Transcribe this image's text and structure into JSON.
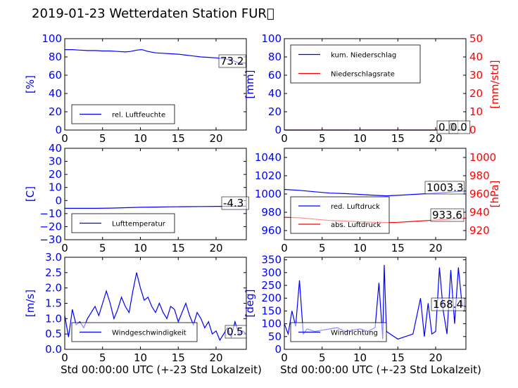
{
  "title": "2019-01-23 Wetterdaten Station FUR\u0000",
  "chart_data": [
    {
      "id": "humidity",
      "type": "line",
      "title": "",
      "xlabel": "",
      "ylabel": "[%]",
      "xlim": [
        0,
        24
      ],
      "ylim": [
        0,
        100
      ],
      "xticks": [
        0,
        5,
        10,
        15,
        20
      ],
      "yticks": [
        0,
        20,
        40,
        60,
        80,
        100
      ],
      "grid": false,
      "legend": {
        "position": "lower-left"
      },
      "value_label": "73.2",
      "series": [
        {
          "name": "rel. Luftfeuchte",
          "color": "#0000ff",
          "axis": "left",
          "x": [
            0,
            1,
            2,
            3,
            4,
            5,
            6,
            7,
            8,
            8.7,
            9.5,
            10.2,
            11,
            12,
            13,
            14,
            15,
            16,
            17,
            18,
            19,
            20,
            21,
            22,
            22.5,
            23,
            24
          ],
          "y": [
            88,
            88,
            87.5,
            87,
            87,
            86.5,
            86.5,
            86,
            85.5,
            86,
            87.5,
            88,
            86,
            84.5,
            84,
            83.5,
            83,
            82,
            81,
            80,
            79.5,
            79,
            78,
            77,
            75,
            73.5,
            73.2
          ]
        }
      ]
    },
    {
      "id": "precipitation",
      "type": "line",
      "title": "",
      "xlabel": "",
      "ylabel": "[mm]",
      "ylabel_right": "[mm/std]",
      "xlim": [
        0,
        24
      ],
      "ylim": [
        0,
        100
      ],
      "ylim_right": [
        0,
        50
      ],
      "xticks": [
        0,
        5,
        10,
        15,
        20
      ],
      "yticks": [
        0,
        20,
        40,
        60,
        80,
        100
      ],
      "yticks_right": [
        0,
        10,
        20,
        30,
        40,
        50
      ],
      "grid": false,
      "legend": {
        "position": "upper-left"
      },
      "value_label": "0.0",
      "value_label_right": "0.0",
      "series": [
        {
          "name": "kum. Niederschlag",
          "color": "#0000ff",
          "axis": "left",
          "x": [
            0,
            24
          ],
          "y": [
            0,
            0
          ]
        },
        {
          "name": "Niederschlagsrate",
          "color": "#ff0000",
          "axis": "right",
          "x": [
            0,
            24
          ],
          "y": [
            0,
            0
          ]
        }
      ]
    },
    {
      "id": "temperature",
      "type": "line",
      "title": "",
      "xlabel": "",
      "ylabel": "[C]",
      "xlim": [
        0,
        24
      ],
      "ylim": [
        -30,
        40
      ],
      "xticks": [
        0,
        5,
        10,
        15,
        20
      ],
      "yticks": [
        -30,
        -20,
        -10,
        0,
        10,
        20,
        30,
        40
      ],
      "grid": false,
      "legend": {
        "position": "lower-left"
      },
      "value_label": "-4.3",
      "series": [
        {
          "name": "Lufttemperatur",
          "color": "#0000ff",
          "axis": "left",
          "x": [
            0,
            2,
            4,
            6,
            8,
            10,
            12,
            14,
            16,
            18,
            20,
            22,
            24
          ],
          "y": [
            -6,
            -6,
            -6,
            -5.8,
            -5.5,
            -5.2,
            -5,
            -4.8,
            -4.7,
            -4.6,
            -4.5,
            -4.4,
            -4.3
          ]
        }
      ]
    },
    {
      "id": "pressure",
      "type": "line",
      "title": "",
      "xlabel": "",
      "ylabel": "",
      "ylabel_right": "[hPa]",
      "xlim": [
        0,
        24
      ],
      "ylim": [
        950,
        1050
      ],
      "ylim_right": [
        910,
        1010
      ],
      "xticks": [
        0,
        5,
        10,
        15,
        20
      ],
      "yticks": [
        960,
        980,
        1000,
        1020,
        1040
      ],
      "yticks_right": [
        920,
        940,
        960,
        980,
        1000
      ],
      "grid": false,
      "legend": {
        "position": "lower-left"
      },
      "value_label": "1003.3",
      "value_label_right": "933.6",
      "series": [
        {
          "name": "red. Luftdruck",
          "color": "#0000ff",
          "axis": "left",
          "x": [
            0,
            2,
            4,
            6,
            8,
            10,
            12,
            13.5,
            15,
            17,
            19,
            21,
            23,
            24
          ],
          "y": [
            1005,
            1004,
            1002.5,
            1001,
            1000.5,
            999.5,
            998.5,
            998,
            998.5,
            999.5,
            1000.5,
            1001.5,
            1002.8,
            1003.3
          ]
        },
        {
          "name": "abs. Luftdruck",
          "color": "#ff0000",
          "axis": "right",
          "x": [
            0,
            2,
            4,
            6,
            8,
            10,
            12,
            13.5,
            15,
            17,
            19,
            21,
            23,
            24
          ],
          "y": [
            934.5,
            934,
            932.5,
            931,
            930.5,
            929.5,
            929,
            928.8,
            929,
            930,
            931,
            932,
            933,
            933.6
          ]
        }
      ]
    },
    {
      "id": "wind-speed",
      "type": "line",
      "title": "",
      "xlabel": "Std 00:00:00 UTC (+-23 Std Lokalzeit)",
      "ylabel": "[m/s]",
      "xlim": [
        0,
        24
      ],
      "ylim": [
        0,
        3
      ],
      "xticks": [
        0,
        5,
        10,
        15,
        20
      ],
      "yticks": [
        0.0,
        0.5,
        1.0,
        1.5,
        2.0,
        2.5,
        3.0
      ],
      "ytick_labels": [
        "0.0",
        "0.5",
        "1.0",
        "1.5",
        "2.0",
        "2.5",
        "3.0"
      ],
      "grid": false,
      "legend": {
        "position": "lower-center"
      },
      "value_label": "0.5",
      "series": [
        {
          "name": "Windgeschwindigkeit",
          "color": "#0000ff",
          "axis": "left",
          "x": [
            0,
            0.5,
            1,
            1.5,
            2,
            2.5,
            3,
            3.5,
            4,
            4.5,
            5,
            5.5,
            6,
            6.5,
            7,
            7.5,
            8,
            8.5,
            9,
            9.5,
            10,
            10.5,
            11,
            11.5,
            12,
            12.5,
            13,
            13.5,
            14,
            14.5,
            15,
            15.5,
            16,
            16.5,
            17,
            17.5,
            18,
            18.5,
            19,
            19.5,
            20,
            20.5,
            21,
            21.5,
            22,
            22.5,
            23,
            23.5,
            24
          ],
          "y": [
            1.1,
            0.4,
            1.3,
            0.8,
            0.9,
            0.7,
            1.0,
            1.2,
            1.4,
            1.1,
            1.5,
            1.9,
            1.5,
            1.0,
            1.3,
            1.7,
            1.4,
            1.2,
            1.9,
            2.5,
            2.0,
            1.6,
            1.7,
            1.4,
            1.2,
            1.5,
            1.2,
            1.0,
            1.4,
            1.3,
            0.9,
            1.2,
            1.5,
            1.1,
            0.8,
            1.2,
            1.0,
            0.7,
            0.9,
            0.5,
            0.6,
            0.3,
            0.5,
            0.7,
            0.4,
            0.9,
            0.5,
            0.6,
            0.5
          ]
        }
      ]
    },
    {
      "id": "wind-direction",
      "type": "line",
      "title": "",
      "xlabel": "Std 00:00:00 UTC (+-23 Std Lokalzeit)",
      "ylabel": "[deg]",
      "xlim": [
        0,
        24
      ],
      "ylim": [
        0,
        360
      ],
      "xticks": [
        0,
        5,
        10,
        15,
        20
      ],
      "yticks": [
        0,
        50,
        100,
        150,
        200,
        250,
        300,
        350
      ],
      "grid": false,
      "legend": {
        "position": "lower-center"
      },
      "value_label": "168.4",
      "series": [
        {
          "name": "Windrichtung",
          "color": "#0000ff",
          "axis": "left",
          "x": [
            0,
            0.5,
            1,
            1.5,
            2,
            2.5,
            3,
            4,
            5,
            6,
            7,
            8,
            9,
            10,
            11,
            12,
            12.5,
            13,
            13.2,
            13.5,
            14,
            15,
            16,
            17,
            18,
            18.5,
            19,
            19.5,
            20,
            20.5,
            21,
            21.5,
            22,
            22.5,
            23,
            23.5,
            24
          ],
          "y": [
            100,
            60,
            150,
            90,
            270,
            60,
            80,
            70,
            75,
            80,
            85,
            70,
            75,
            80,
            70,
            85,
            260,
            40,
            330,
            70,
            60,
            40,
            50,
            60,
            200,
            50,
            180,
            60,
            70,
            320,
            150,
            60,
            310,
            100,
            320,
            170,
            168
          ]
        }
      ]
    }
  ]
}
